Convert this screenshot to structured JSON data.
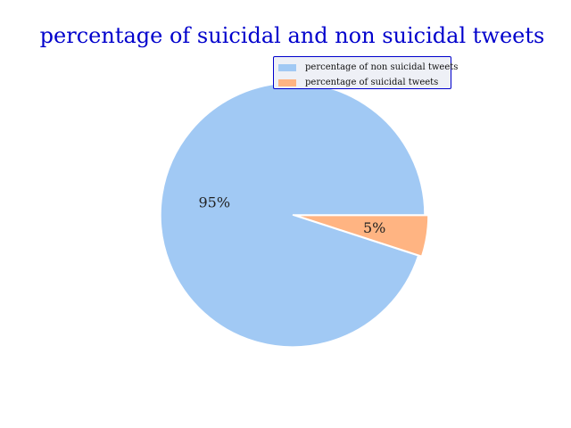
{
  "chart_data": {
    "type": "pie",
    "title": "percentage of suicidal and non suicidal tweets",
    "slices": [
      {
        "label": "percentage of non suicidal tweets",
        "value": 95,
        "display": "95%",
        "color": "#a1c9f4"
      },
      {
        "label": "percentage of suicidal tweets",
        "value": 5,
        "display": "5%",
        "color": "#ffb482"
      }
    ],
    "legend_position": "top-right",
    "title_color": "#0000cc",
    "legend_border_color": "#0000cc",
    "legend_background": "#eef0f6"
  }
}
